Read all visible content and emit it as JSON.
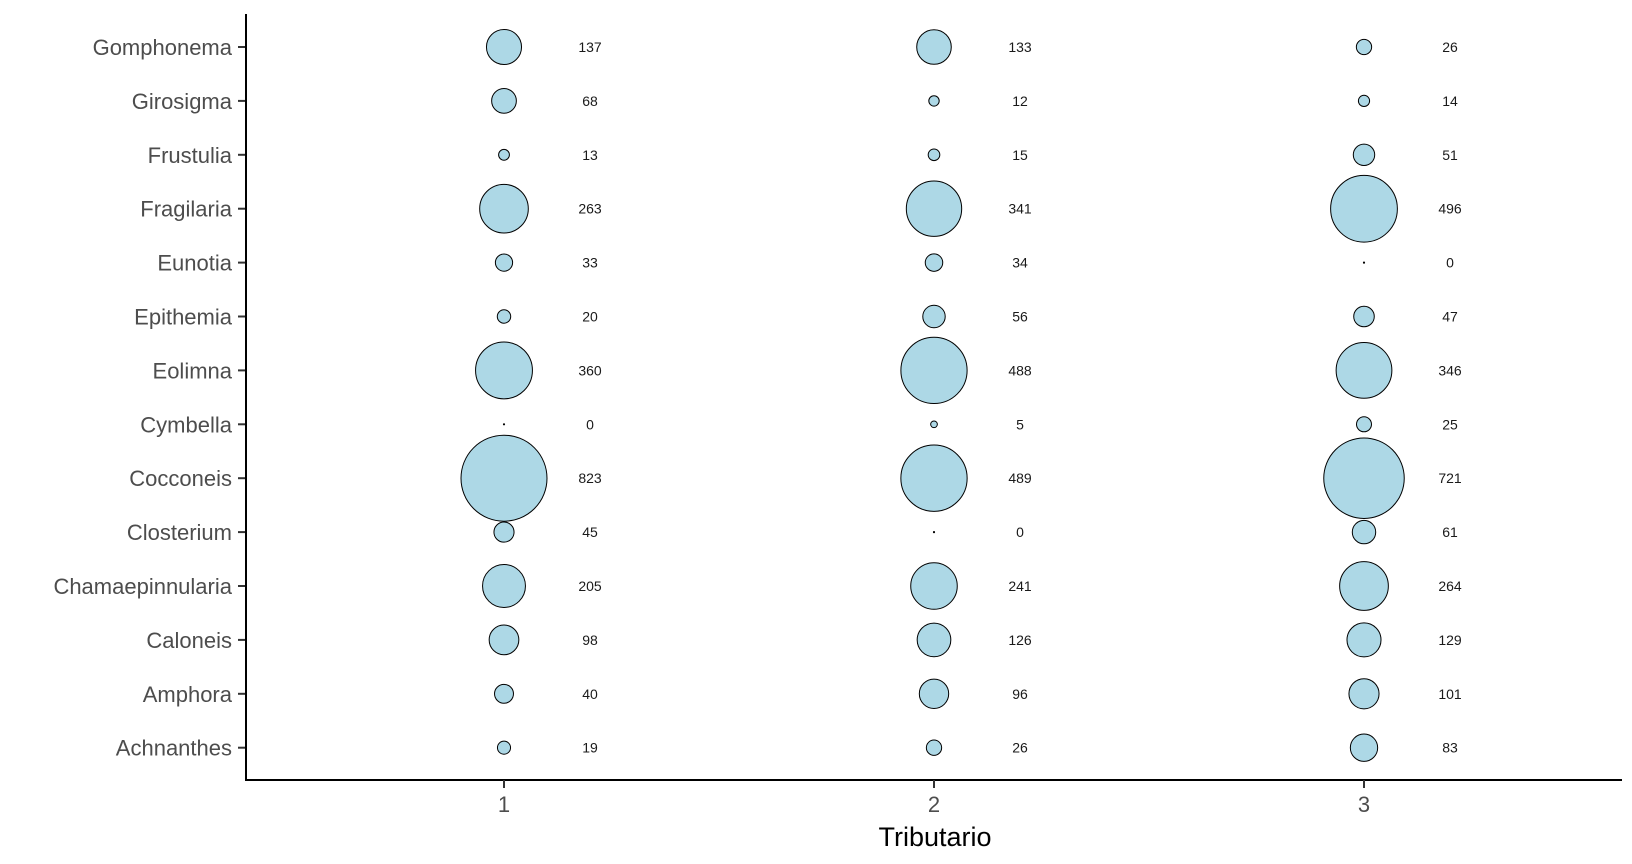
{
  "chart_data": {
    "type": "scatter",
    "subtype": "bubble",
    "x_categories": [
      "1",
      "2",
      "3"
    ],
    "y_categories": [
      "Gomphonema",
      "Girosigma",
      "Frustulia",
      "Fragilaria",
      "Eunotia",
      "Epithemia",
      "Eolimna",
      "Cymbella",
      "Cocconeis",
      "Closterium",
      "Chamaepinnularia",
      "Caloneis",
      "Amphora",
      "Achnanthes"
    ],
    "values": {
      "Gomphonema": [
        137,
        133,
        26
      ],
      "Girosigma": [
        68,
        12,
        14
      ],
      "Frustulia": [
        13,
        15,
        51
      ],
      "Fragilaria": [
        263,
        341,
        496
      ],
      "Eunotia": [
        33,
        34,
        0
      ],
      "Epithemia": [
        20,
        56,
        47
      ],
      "Eolimna": [
        360,
        488,
        346
      ],
      "Cymbella": [
        0,
        5,
        25
      ],
      "Cocconeis": [
        823,
        489,
        721
      ],
      "Closterium": [
        45,
        0,
        61
      ],
      "Chamaepinnularia": [
        205,
        241,
        264
      ],
      "Caloneis": [
        98,
        126,
        129
      ],
      "Amphora": [
        40,
        96,
        101
      ],
      "Achnanthes": [
        19,
        26,
        83
      ]
    },
    "xlabel": "Tributario",
    "ylabel": "",
    "title": "",
    "grid": false,
    "legend": "none",
    "bubble_fill": "#add8e6",
    "bubble_stroke": "#000000"
  }
}
